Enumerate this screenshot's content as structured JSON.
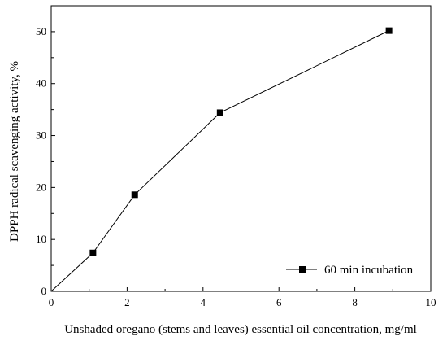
{
  "chart_data": {
    "type": "line",
    "title": "",
    "xlabel": "Unshaded oregano (stems and leaves) essential oil concentration, mg/ml",
    "ylabel": "DPPH radical scavenging activity, %",
    "xlim": [
      0,
      10
    ],
    "ylim": [
      0,
      55
    ],
    "x_ticks": [
      0,
      2,
      4,
      6,
      8,
      10
    ],
    "y_ticks": [
      0,
      10,
      20,
      30,
      40,
      50
    ],
    "grid": false,
    "legend_position": "bottom-right",
    "series": [
      {
        "name": "60 min incubation",
        "marker": "square",
        "color": "#000000",
        "x": [
          0,
          1.1,
          2.2,
          4.45,
          8.9
        ],
        "y": [
          0,
          7.4,
          18.6,
          34.4,
          50.2
        ]
      }
    ]
  }
}
